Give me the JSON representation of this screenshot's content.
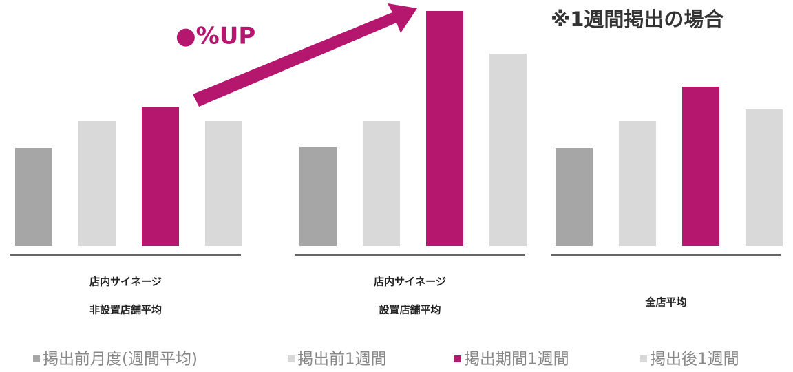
{
  "chart_data": {
    "type": "bar",
    "annotations": [
      "●%UP",
      "※1週間掲出の場合"
    ],
    "categories": [
      [
        "店内サイネージ",
        "非設置店舗平均"
      ],
      [
        "店内サイネージ",
        "設置店舗平均"
      ],
      [
        "全店平均"
      ]
    ],
    "series": [
      {
        "name": "掲出前月度(週間平均)",
        "color": "#a6a6a6",
        "values": [
          143,
          144,
          143
        ]
      },
      {
        "name": "掲出前1週間",
        "color": "#d9d9d9",
        "values": [
          182,
          182,
          182
        ]
      },
      {
        "name": "掲出期間1週間",
        "color": "#b5176e",
        "values": [
          202,
          342,
          232
        ]
      },
      {
        "name": "掲出後1週間",
        "color": "#d9d9d9",
        "values": [
          182,
          280,
          199
        ]
      }
    ],
    "ylim": [
      0,
      350
    ]
  }
}
